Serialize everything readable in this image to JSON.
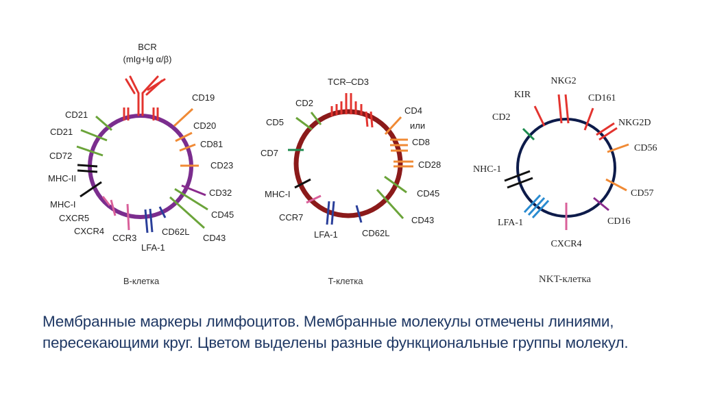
{
  "colors": {
    "b_ring": "#7b2d8e",
    "t_ring": "#8b1a1a",
    "nkt_ring": "#0d1b4a",
    "red": "#e3342f",
    "orange": "#f08a35",
    "green": "#6ba43a",
    "dark_green": "#1c8a4e",
    "black": "#111111",
    "pink": "#d9609a",
    "blue": "#2a3f9a",
    "purple": "#8a2b8c",
    "light_blue": "#2a8bd0",
    "caption": "#1f3864"
  },
  "cells": [
    {
      "id": "b",
      "caption": "B-клетка",
      "header": [
        "BCR",
        "(mIg+Ig α/β)"
      ],
      "labels": [
        "CD19",
        "CD20",
        "CD81",
        "CD23",
        "CD32",
        "CD45",
        "CD43",
        "CD62L",
        "LFA-1",
        "CCR3",
        "CXCR4",
        "CXCR5",
        "MHC-I",
        "MHC-II",
        "CD72",
        "CD21",
        "CD21"
      ]
    },
    {
      "id": "t",
      "caption": "T-клетка",
      "labels": [
        "TCR–CD3",
        "CD2",
        "CD5",
        "CD7",
        "MHC-I",
        "CCR7",
        "LFA-1",
        "CD62L",
        "CD43",
        "CD45",
        "CD28",
        "CD8",
        "или",
        "CD4"
      ]
    },
    {
      "id": "nkt",
      "caption": "NKT-клетка",
      "labels": [
        "NKG2",
        "KIR",
        "CD161",
        "NKG2D",
        "CD56",
        "CD57",
        "CD16",
        "CXCR4",
        "LFA-1",
        "NHC-1",
        "CD2"
      ]
    }
  ],
  "caption_text": "Мембранные маркеры лимфоцитов. Мембранные молекулы отмечены линиями, пересекающими круг. Цветом выделены разные функциональные группы молекул."
}
